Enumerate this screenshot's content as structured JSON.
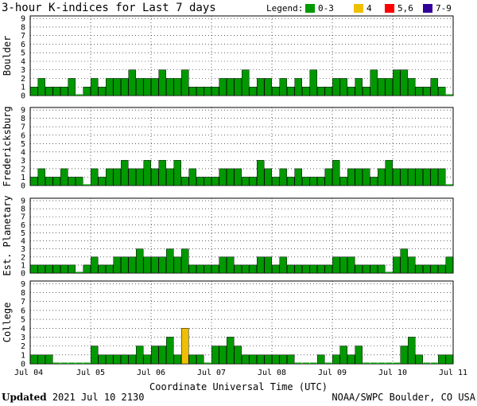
{
  "chart_data": {
    "type": "bar",
    "title": "3-hour K-indices for Last 7 days",
    "legend": {
      "label": "Legend:",
      "items": [
        {
          "label": "0-3",
          "color": "#009900"
        },
        {
          "label": "4",
          "color": "#f0c000"
        },
        {
          "label": "5,6",
          "color": "#ff0000"
        },
        {
          "label": "7-9",
          "color": "#330099"
        }
      ]
    },
    "ylim": [
      0,
      9
    ],
    "yticks": [
      "0",
      "1",
      "2",
      "3",
      "4",
      "5",
      "6",
      "7",
      "8",
      "9"
    ],
    "xticks": [
      "Jul 04",
      "Jul 05",
      "Jul 06",
      "Jul 07",
      "Jul 08",
      "Jul 09",
      "Jul 10",
      "Jul 11"
    ],
    "xlabel": "Coordinate Universal Time (UTC)",
    "bins_per_day": 8,
    "days": 7,
    "series": [
      {
        "name": "Boulder",
        "values": [
          1,
          2,
          1,
          1,
          1,
          2,
          0,
          1,
          2,
          1,
          2,
          2,
          2,
          3,
          2,
          2,
          2,
          3,
          2,
          2,
          3,
          1,
          1,
          1,
          1,
          2,
          2,
          2,
          3,
          1,
          2,
          2,
          1,
          2,
          1,
          2,
          1,
          3,
          1,
          1,
          2,
          2,
          1,
          2,
          1,
          3,
          2,
          2,
          3,
          3,
          2,
          1,
          1,
          2,
          1,
          0
        ]
      },
      {
        "name": "Fredericksburg",
        "values": [
          1,
          2,
          1,
          1,
          2,
          1,
          1,
          0,
          2,
          1,
          2,
          2,
          3,
          2,
          2,
          3,
          2,
          3,
          2,
          3,
          1,
          2,
          1,
          1,
          1,
          2,
          2,
          2,
          1,
          1,
          3,
          2,
          1,
          2,
          1,
          2,
          1,
          1,
          1,
          2,
          3,
          1,
          2,
          2,
          2,
          1,
          2,
          3,
          2,
          2,
          2,
          2,
          2,
          2,
          2,
          0
        ]
      },
      {
        "name": "Est. Planetary",
        "values": [
          1,
          1,
          1,
          1,
          1,
          1,
          0,
          1,
          2,
          1,
          1,
          2,
          2,
          2,
          3,
          2,
          2,
          2,
          3,
          2,
          3,
          1,
          1,
          1,
          1,
          2,
          2,
          1,
          1,
          1,
          2,
          2,
          1,
          2,
          1,
          1,
          1,
          1,
          1,
          1,
          2,
          2,
          2,
          1,
          1,
          1,
          1,
          0,
          2,
          3,
          2,
          1,
          1,
          1,
          1,
          2
        ]
      },
      {
        "name": "College",
        "values": [
          1,
          1,
          1,
          0,
          0,
          0,
          0,
          0,
          2,
          1,
          1,
          1,
          1,
          1,
          2,
          1,
          2,
          2,
          3,
          1,
          4,
          1,
          1,
          0,
          2,
          2,
          3,
          2,
          1,
          1,
          1,
          1,
          1,
          1,
          1,
          0,
          0,
          0,
          1,
          0,
          1,
          2,
          1,
          2,
          0,
          0,
          0,
          0,
          0,
          2,
          3,
          1,
          0,
          0,
          1,
          1
        ]
      }
    ],
    "grid": true
  },
  "footer": {
    "updated_label": "Updated",
    "updated_value": "2021 Jul 10 2130",
    "credit": "NOAA/SWPC Boulder, CO USA"
  }
}
